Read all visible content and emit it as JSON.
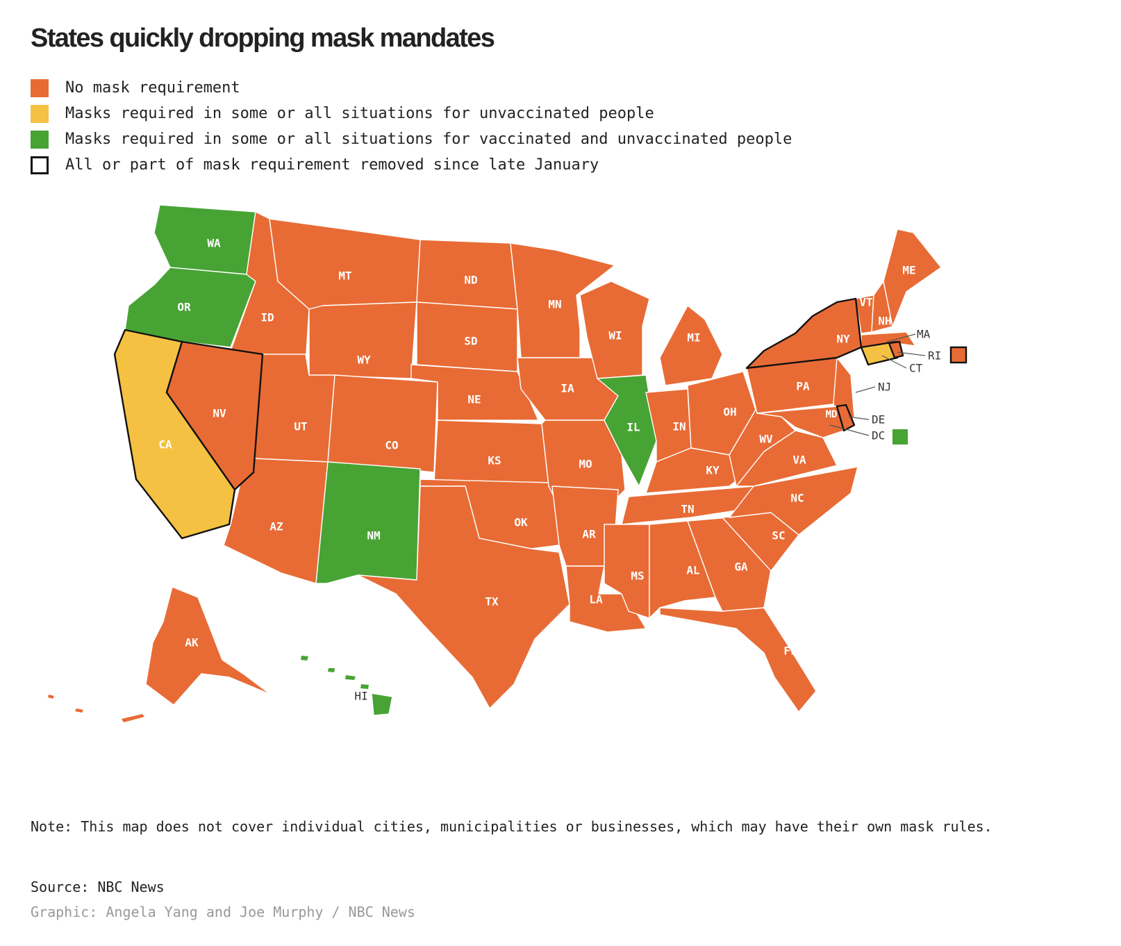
{
  "title": "States quickly dropping mask mandates",
  "colors": {
    "no_requirement": "#e86b35",
    "unvaccinated": "#f5c142",
    "all": "#48a335",
    "changed_outline": "#111111"
  },
  "legend": [
    {
      "key": "no_requirement",
      "label": "No mask requirement"
    },
    {
      "key": "unvaccinated",
      "label": "Masks required in some or all situations for unvaccinated people"
    },
    {
      "key": "all",
      "label": "Masks required in some or all situations for vaccinated and unvaccinated people"
    },
    {
      "key": "changed",
      "label": "All or part of mask requirement removed since late January"
    }
  ],
  "states": {
    "WA": {
      "status": "all",
      "changed": false
    },
    "OR": {
      "status": "all",
      "changed": false
    },
    "CA": {
      "status": "unvaccinated",
      "changed": true
    },
    "NV": {
      "status": "no_requirement",
      "changed": true
    },
    "ID": {
      "status": "no_requirement",
      "changed": false
    },
    "MT": {
      "status": "no_requirement",
      "changed": false
    },
    "WY": {
      "status": "no_requirement",
      "changed": false
    },
    "UT": {
      "status": "no_requirement",
      "changed": false
    },
    "AZ": {
      "status": "no_requirement",
      "changed": false
    },
    "CO": {
      "status": "no_requirement",
      "changed": false
    },
    "NM": {
      "status": "all",
      "changed": false
    },
    "ND": {
      "status": "no_requirement",
      "changed": false
    },
    "SD": {
      "status": "no_requirement",
      "changed": false
    },
    "NE": {
      "status": "no_requirement",
      "changed": false
    },
    "KS": {
      "status": "no_requirement",
      "changed": false
    },
    "OK": {
      "status": "no_requirement",
      "changed": false
    },
    "TX": {
      "status": "no_requirement",
      "changed": false
    },
    "MN": {
      "status": "no_requirement",
      "changed": false
    },
    "IA": {
      "status": "no_requirement",
      "changed": false
    },
    "MO": {
      "status": "no_requirement",
      "changed": false
    },
    "AR": {
      "status": "no_requirement",
      "changed": false
    },
    "LA": {
      "status": "no_requirement",
      "changed": false
    },
    "WI": {
      "status": "no_requirement",
      "changed": false
    },
    "IL": {
      "status": "all",
      "changed": false
    },
    "MI": {
      "status": "no_requirement",
      "changed": false
    },
    "IN": {
      "status": "no_requirement",
      "changed": false
    },
    "OH": {
      "status": "no_requirement",
      "changed": false
    },
    "KY": {
      "status": "no_requirement",
      "changed": false
    },
    "TN": {
      "status": "no_requirement",
      "changed": false
    },
    "MS": {
      "status": "no_requirement",
      "changed": false
    },
    "AL": {
      "status": "no_requirement",
      "changed": false
    },
    "GA": {
      "status": "no_requirement",
      "changed": false
    },
    "FL": {
      "status": "no_requirement",
      "changed": false
    },
    "SC": {
      "status": "no_requirement",
      "changed": false
    },
    "NC": {
      "status": "no_requirement",
      "changed": false
    },
    "VA": {
      "status": "no_requirement",
      "changed": false
    },
    "WV": {
      "status": "no_requirement",
      "changed": false
    },
    "PA": {
      "status": "no_requirement",
      "changed": false
    },
    "NY": {
      "status": "no_requirement",
      "changed": true
    },
    "NJ": {
      "status": "no_requirement",
      "changed": false
    },
    "MD": {
      "status": "no_requirement",
      "changed": false
    },
    "DE": {
      "status": "no_requirement",
      "changed": true
    },
    "DC": {
      "status": "all",
      "changed": false
    },
    "CT": {
      "status": "unvaccinated",
      "changed": true
    },
    "RI": {
      "status": "no_requirement",
      "changed": true
    },
    "MA": {
      "status": "no_requirement",
      "changed": false
    },
    "VT": {
      "status": "no_requirement",
      "changed": false
    },
    "NH": {
      "status": "no_requirement",
      "changed": false
    },
    "ME": {
      "status": "no_requirement",
      "changed": false
    },
    "AK": {
      "status": "no_requirement",
      "changed": false
    },
    "HI": {
      "status": "all",
      "changed": false
    }
  },
  "note": "Note: This map does not cover individual cities, municipalities or businesses, which may have their own mask rules.",
  "source": "Source: NBC News",
  "credit": "Graphic: Angela Yang and Joe Murphy / NBC News"
}
